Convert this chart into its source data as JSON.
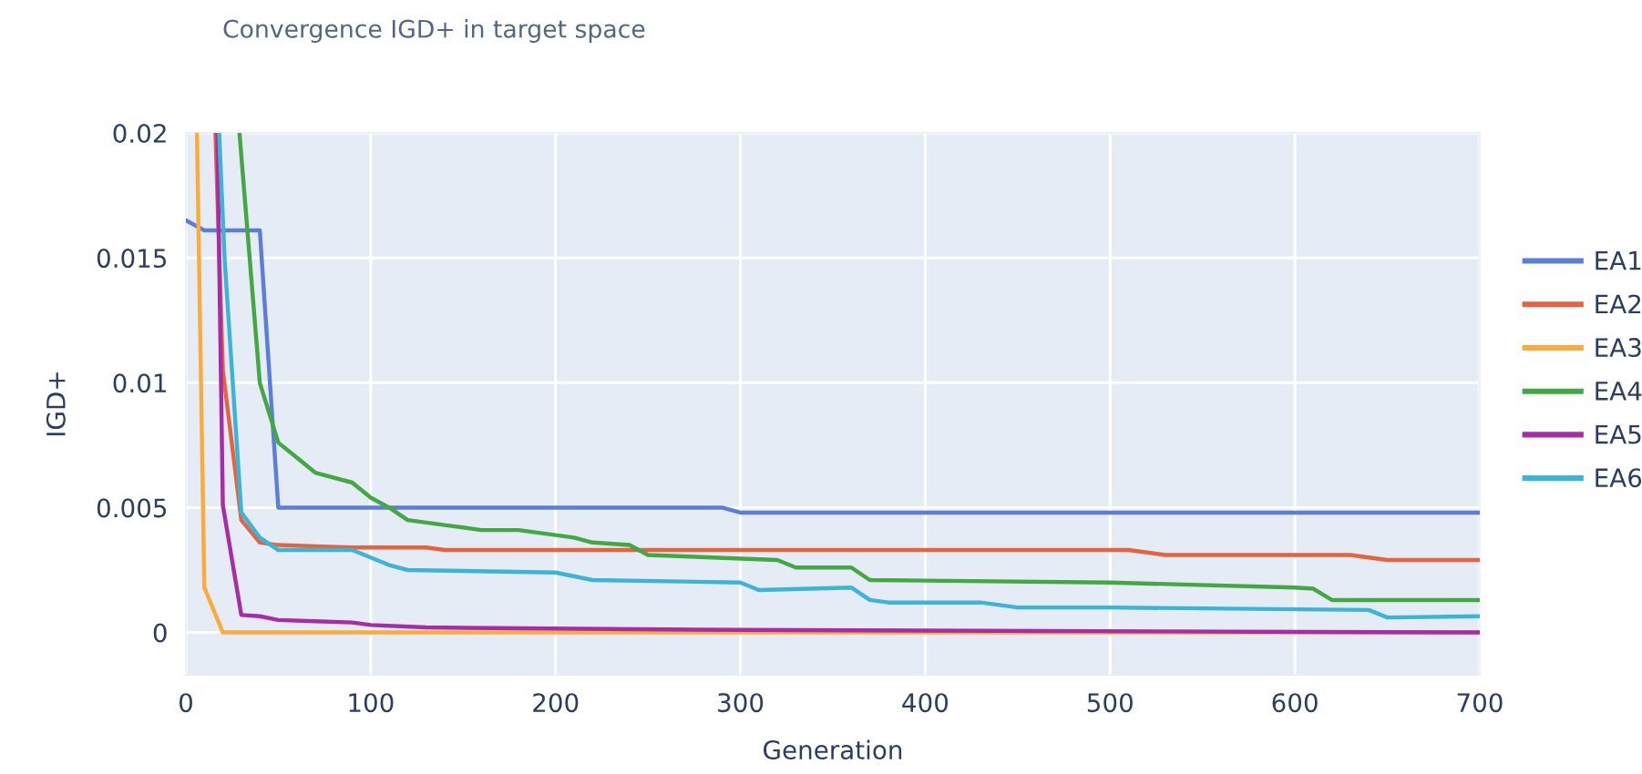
{
  "chart_data": {
    "type": "line",
    "title": "Convergence IGD+ in target space",
    "xlabel": "Generation",
    "ylabel": "IGD+",
    "xlim": [
      0,
      700
    ],
    "xticks": [
      0,
      100,
      200,
      300,
      400,
      500,
      600,
      700
    ],
    "ylim": [
      -0.0017,
      0.02
    ],
    "yticks": [
      0,
      0.005,
      0.01,
      0.015,
      0.02
    ],
    "grid": true,
    "legend": "right",
    "line_style": "solid",
    "series": [
      {
        "name": "EA1",
        "color": "#5b7fd8",
        "x": [
          0,
          10,
          40,
          50,
          290,
          300,
          700
        ],
        "values": [
          0.0165,
          0.0161,
          0.0161,
          0.005,
          0.005,
          0.0048,
          0.0048
        ]
      },
      {
        "name": "EA2",
        "color": "#e4643f",
        "x": [
          16,
          20,
          30,
          40,
          50,
          70,
          90,
          130,
          140,
          510,
          530,
          630,
          650,
          700
        ],
        "values": [
          0.02,
          0.0105,
          0.0045,
          0.0036,
          0.0035,
          0.00345,
          0.0034,
          0.0034,
          0.0033,
          0.0033,
          0.0031,
          0.0031,
          0.0029,
          0.0029
        ]
      },
      {
        "name": "EA3",
        "color": "#fbaa3c",
        "x": [
          6,
          10,
          20,
          700
        ],
        "values": [
          0.02,
          0.0018,
          0,
          0
        ]
      },
      {
        "name": "EA4",
        "color": "#43a843",
        "x": [
          29,
          40,
          50,
          60,
          70,
          90,
          100,
          110,
          120,
          130,
          140,
          160,
          180,
          200,
          210,
          220,
          240,
          250,
          320,
          330,
          360,
          370,
          500,
          600,
          610,
          620,
          700
        ],
        "values": [
          0.02,
          0.01,
          0.0076,
          0.007,
          0.0064,
          0.006,
          0.0054,
          0.005,
          0.0045,
          0.0044,
          0.0043,
          0.0041,
          0.0041,
          0.0039,
          0.0038,
          0.0036,
          0.0035,
          0.0031,
          0.0029,
          0.0026,
          0.0026,
          0.0021,
          0.002,
          0.0018,
          0.00175,
          0.0013,
          0.0013
        ]
      },
      {
        "name": "EA5",
        "color": "#a62ca8",
        "x": [
          17,
          20,
          30,
          40,
          50,
          70,
          90,
          100,
          130,
          300,
          700
        ],
        "values": [
          0.02,
          0.0051,
          0.0007,
          0.00065,
          0.0005,
          0.00045,
          0.0004,
          0.0003,
          0.0002,
          0.0001,
          0
        ]
      },
      {
        "name": "EA6",
        "color": "#3cb4d8",
        "x": [
          18,
          21,
          30,
          40,
          50,
          90,
          100,
          110,
          120,
          200,
          220,
          300,
          310,
          360,
          370,
          380,
          430,
          450,
          500,
          640,
          650,
          700
        ],
        "values": [
          0.02,
          0.0149,
          0.0048,
          0.0038,
          0.0033,
          0.0033,
          0.003,
          0.0027,
          0.0025,
          0.0024,
          0.0021,
          0.002,
          0.0017,
          0.0018,
          0.0013,
          0.0012,
          0.0012,
          0.001,
          0.001,
          0.0009,
          0.0006,
          0.00065
        ]
      }
    ]
  }
}
